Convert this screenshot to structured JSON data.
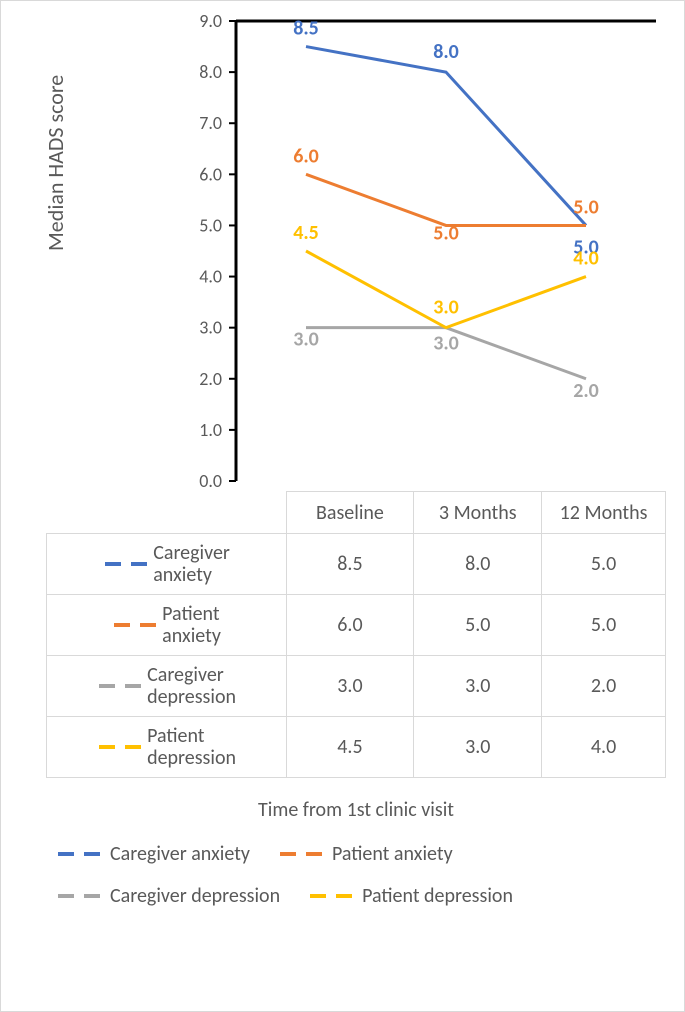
{
  "chart": {
    "type": "line",
    "y_title": "Median HADS score",
    "x_title": "Time from 1st clinic visit",
    "categories": [
      "Baseline",
      "3 Months",
      "12 Months"
    ],
    "ylim": [
      0.0,
      9.0
    ],
    "ytick_step": 1.0,
    "yticks": [
      "0.0",
      "1.0",
      "2.0",
      "3.0",
      "4.0",
      "5.0",
      "6.0",
      "7.0",
      "8.0",
      "9.0"
    ],
    "axis_color": "#000000",
    "axis_stroke_width": 3,
    "line_stroke_width": 3,
    "tick_font_size": 18,
    "tick_color": "#595959",
    "label_font_size": 20,
    "label_bold": true,
    "background_color": "#ffffff",
    "grid_color": "#d9d9d9",
    "series": [
      {
        "key": "caregiver_anxiety",
        "label": "Caregiver anxiety",
        "color": "#4472c4",
        "dash": "10,6",
        "values": [
          8.5,
          8.0,
          5.0
        ],
        "labels": [
          "8.5",
          "8.0",
          "5.0"
        ],
        "label_dy": [
          -12,
          -14,
          28
        ]
      },
      {
        "key": "patient_anxiety",
        "label": "Patient anxiety",
        "color": "#ed7d31",
        "dash": "10,6",
        "values": [
          6.0,
          5.0,
          5.0
        ],
        "labels": [
          "6.0",
          "5.0",
          "5.0"
        ],
        "label_dy": [
          -12,
          14,
          -12
        ]
      },
      {
        "key": "caregiver_depression",
        "label": "Caregiver depression",
        "color": "#a6a6a6",
        "dash": "10,6",
        "values": [
          3.0,
          3.0,
          2.0
        ],
        "labels": [
          "3.0",
          "3.0",
          "2.0"
        ],
        "label_dy": [
          18,
          22,
          18
        ]
      },
      {
        "key": "patient_depression",
        "label": "Patient depression",
        "color": "#ffc000",
        "dash": "10,6",
        "values": [
          4.5,
          3.0,
          4.0
        ],
        "labels": [
          "4.5",
          "3.0",
          "4.0"
        ],
        "label_dy": [
          -12,
          -14,
          -12
        ]
      }
    ],
    "legend_bottom": [
      {
        "label": "Caregiver anxiety",
        "color": "#4472c4"
      },
      {
        "label": "Patient anxiety",
        "color": "#ed7d31"
      },
      {
        "label": "Caregiver depression",
        "color": "#a6a6a6"
      },
      {
        "label": "Patient depression",
        "color": "#ffc000"
      }
    ]
  }
}
